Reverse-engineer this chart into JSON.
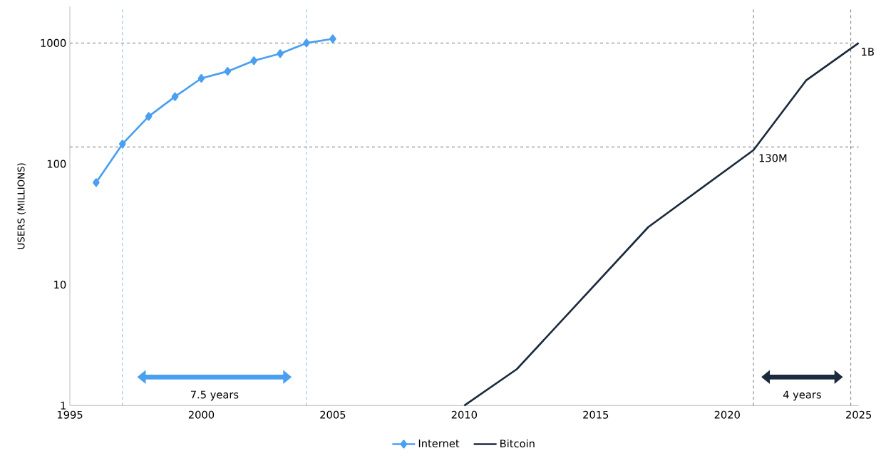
{
  "chart_data": {
    "type": "line",
    "ylabel": "USERS (MILLIONS)",
    "log": "y",
    "xlim": [
      1995,
      2025
    ],
    "xticks": [
      1995,
      2000,
      2005,
      2010,
      2015,
      2020,
      2025
    ],
    "ylim": [
      1,
      2000
    ],
    "yticks": [
      1,
      10,
      100,
      1000
    ],
    "grid": false,
    "legend": "bottom",
    "line_style": "solid",
    "series": [
      {
        "name": "Internet",
        "color": "#4a9ff0",
        "marker": "diamond",
        "x": [
          1996,
          1997,
          1998,
          1999,
          2000,
          2001,
          2002,
          2003,
          2004,
          2005
        ],
        "values": [
          70,
          146,
          247,
          360,
          510,
          583,
          714,
          817,
          1000,
          1084
        ]
      },
      {
        "name": "Bitcoin",
        "color": "#1c2a3e",
        "marker": "none",
        "x": [
          2010,
          2012,
          2017,
          2021,
          2023,
          2025
        ],
        "values": [
          1,
          2,
          30,
          130,
          490,
          1000
        ]
      }
    ],
    "ref_lines": [
      {
        "axis": "y",
        "value": 1000,
        "color": "#555555",
        "line_style": "dashed"
      },
      {
        "axis": "y",
        "value": 138,
        "color": "#555555",
        "line_style": "dashed"
      },
      {
        "axis": "x",
        "value": 1997,
        "color": "#5aaaf0",
        "line_style": "dashed"
      },
      {
        "axis": "x",
        "value": 2004,
        "color": "#5aaaf0",
        "line_style": "dashed"
      },
      {
        "axis": "x",
        "value": 2021,
        "color": "#555555",
        "line_style": "dashed"
      },
      {
        "axis": "x",
        "value": 2024.7,
        "color": "#555555",
        "line_style": "dashed"
      }
    ],
    "annotations": [
      "7.5 years",
      "4 years",
      {
        "text": "130M",
        "x": 2021,
        "y": 130
      },
      {
        "text": "1B",
        "x": 2025,
        "y": 1000
      }
    ]
  }
}
